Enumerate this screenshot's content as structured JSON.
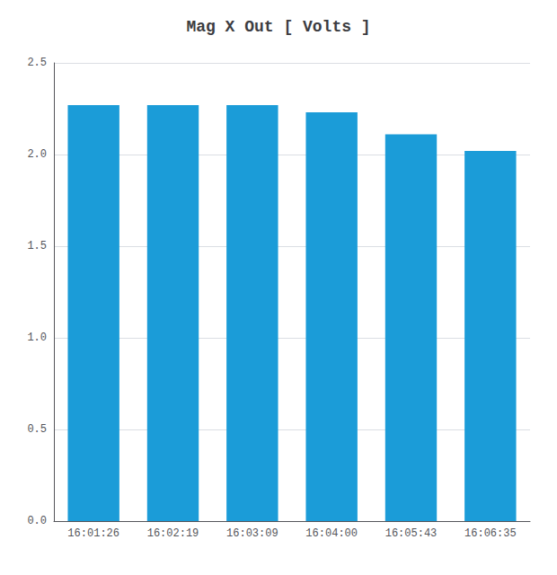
{
  "chart_data": {
    "type": "bar",
    "title": "Mag X Out [ Volts ]",
    "categories": [
      "16:01:26",
      "16:02:19",
      "16:03:09",
      "16:04:00",
      "16:05:43",
      "16:06:35"
    ],
    "values": [
      2.27,
      2.27,
      2.27,
      2.23,
      2.11,
      2.02
    ],
    "color": "#1b9cd8",
    "ylim": [
      0.0,
      2.5
    ],
    "yticks": [
      {
        "value": 0.0,
        "label": "0.0"
      },
      0.5,
      {
        "value": 1.0,
        "label": "1.0"
      },
      1.5,
      {
        "value": 2.0,
        "label": "2.0"
      },
      2.5
    ],
    "grid": true
  }
}
